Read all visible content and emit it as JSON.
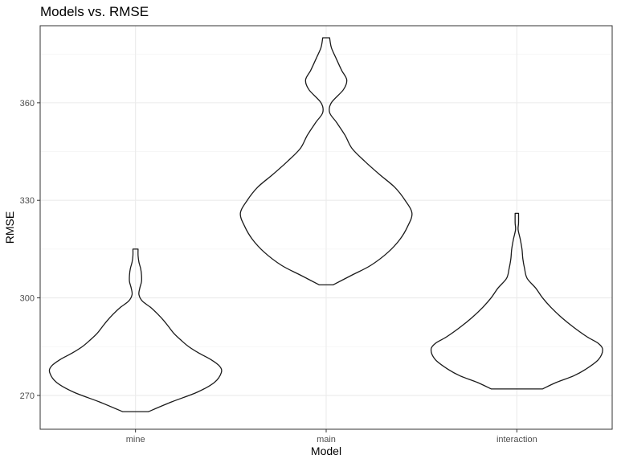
{
  "chart_data": {
    "type": "violin",
    "title": "Models vs. RMSE",
    "xlabel": "Model",
    "ylabel": "RMSE",
    "categories": [
      "mine",
      "main",
      "interaction"
    ],
    "y_ticks": [
      270,
      300,
      330,
      360
    ],
    "ylim": [
      259.6,
      383.7
    ],
    "grid": true,
    "violins": [
      {
        "name": "mine",
        "profile": [
          [
            265,
            0.15
          ],
          [
            268,
            0.42
          ],
          [
            271,
            0.72
          ],
          [
            274,
            0.92
          ],
          [
            277,
            1.0
          ],
          [
            279,
            0.98
          ],
          [
            281,
            0.88
          ],
          [
            283,
            0.74
          ],
          [
            285,
            0.62
          ],
          [
            287,
            0.53
          ],
          [
            289,
            0.45
          ],
          [
            291,
            0.39
          ],
          [
            293,
            0.33
          ],
          [
            295,
            0.26
          ],
          [
            297,
            0.18
          ],
          [
            299,
            0.08
          ],
          [
            301,
            0.04
          ],
          [
            303,
            0.05
          ],
          [
            305,
            0.07
          ],
          [
            307,
            0.07
          ],
          [
            309,
            0.06
          ],
          [
            311,
            0.04
          ],
          [
            313,
            0.03
          ],
          [
            315,
            0.03
          ]
        ]
      },
      {
        "name": "main",
        "profile": [
          [
            304,
            0.08
          ],
          [
            307,
            0.3
          ],
          [
            310,
            0.52
          ],
          [
            314,
            0.72
          ],
          [
            318,
            0.86
          ],
          [
            322,
            0.95
          ],
          [
            326,
            1.0
          ],
          [
            330,
            0.92
          ],
          [
            334,
            0.8
          ],
          [
            338,
            0.62
          ],
          [
            342,
            0.45
          ],
          [
            346,
            0.3
          ],
          [
            350,
            0.22
          ],
          [
            354,
            0.12
          ],
          [
            357,
            0.04
          ],
          [
            360,
            0.06
          ],
          [
            364,
            0.2
          ],
          [
            367,
            0.24
          ],
          [
            370,
            0.18
          ],
          [
            374,
            0.11
          ],
          [
            377,
            0.06
          ],
          [
            380,
            0.04
          ]
        ]
      },
      {
        "name": "interaction",
        "profile": [
          [
            272,
            0.3
          ],
          [
            274,
            0.46
          ],
          [
            276,
            0.66
          ],
          [
            278,
            0.8
          ],
          [
            281,
            0.95
          ],
          [
            284,
            1.0
          ],
          [
            286,
            0.95
          ],
          [
            288,
            0.82
          ],
          [
            291,
            0.66
          ],
          [
            294,
            0.52
          ],
          [
            297,
            0.4
          ],
          [
            300,
            0.3
          ],
          [
            303,
            0.22
          ],
          [
            306,
            0.12
          ],
          [
            309,
            0.09
          ],
          [
            312,
            0.07
          ],
          [
            315,
            0.06
          ],
          [
            318,
            0.04
          ],
          [
            321,
            0.015
          ],
          [
            323,
            0.02
          ],
          [
            326,
            0.02
          ]
        ]
      }
    ]
  }
}
